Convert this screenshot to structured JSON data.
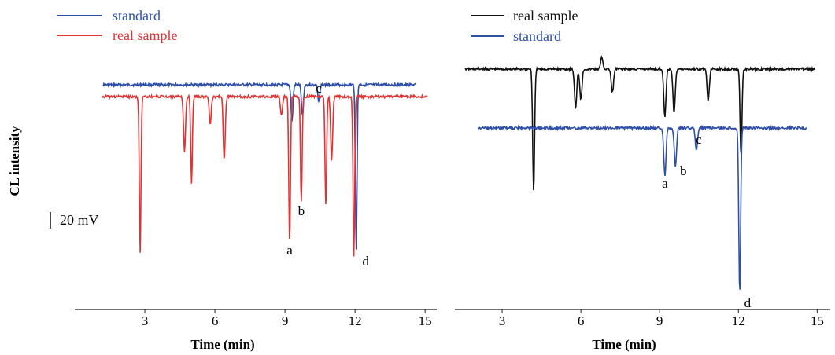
{
  "ylabel": "CL intensity",
  "scale_bar_label": "20 mV",
  "chart_data": [
    {
      "type": "line",
      "panel": "left",
      "xlabel": "Time (min)",
      "ylabel": "CL intensity",
      "xlim": [
        0,
        15.5
      ],
      "xticks": [
        "3",
        "6",
        "9",
        "12",
        "15"
      ],
      "legend_position": "top-left",
      "grid": false,
      "series": [
        {
          "name": "standard",
          "color": "#2e4fa8",
          "x_start": 1.2,
          "x_end": 14.6,
          "baseline": 0,
          "peaks": [
            {
              "t": 9.3,
              "h": 46
            },
            {
              "t": 9.75,
              "h": 40
            },
            {
              "t": 10.45,
              "h": 22
            },
            {
              "t": 12.05,
              "h": 210
            }
          ]
        },
        {
          "name": "real sample",
          "color": "#e03434",
          "x_start": 1.2,
          "x_end": 15.1,
          "baseline": -15,
          "peaks": [
            {
              "t": 2.8,
              "h": 198
            },
            {
              "t": 4.7,
              "h": 70
            },
            {
              "t": 5.0,
              "h": 110
            },
            {
              "t": 5.8,
              "h": 35
            },
            {
              "t": 6.4,
              "h": 80
            },
            {
              "t": 8.85,
              "h": 25
            },
            {
              "t": 9.2,
              "h": 185
            },
            {
              "t": 9.7,
              "h": 135
            },
            {
              "t": 10.75,
              "h": 140
            },
            {
              "t": 11.0,
              "h": 80
            },
            {
              "t": 11.95,
              "h": 205
            }
          ]
        }
      ],
      "annotations": [
        {
          "text": "a",
          "t": 9.2
        },
        {
          "text": "b",
          "t": 9.7
        },
        {
          "text": "c",
          "t": 10.45
        },
        {
          "text": "d",
          "t": 12.05
        }
      ]
    },
    {
      "type": "line",
      "panel": "right",
      "xlabel": "Time (min)",
      "xlim": [
        1.2,
        15.5
      ],
      "xticks": [
        "3",
        "6",
        "9",
        "12",
        "15"
      ],
      "legend_position": "top-left",
      "grid": false,
      "series": [
        {
          "name": "real sample",
          "color": "#111111",
          "x_start": 1.6,
          "x_end": 14.9,
          "baseline": 0,
          "peaks": [
            {
              "t": 4.2,
              "h": 158
            },
            {
              "t": 5.8,
              "h": 50
            },
            {
              "t": 6.0,
              "h": 38
            },
            {
              "t": 6.8,
              "h": -15
            },
            {
              "t": 7.2,
              "h": 30
            },
            {
              "t": 9.2,
              "h": 60
            },
            {
              "t": 9.55,
              "h": 55
            },
            {
              "t": 10.85,
              "h": 40
            },
            {
              "t": 12.1,
              "h": 110
            }
          ]
        },
        {
          "name": "standard",
          "color": "#2e4fa8",
          "x_start": 2.1,
          "x_end": 14.6,
          "baseline": -72,
          "peaks": [
            {
              "t": 9.2,
              "h": 60
            },
            {
              "t": 9.6,
              "h": 48
            },
            {
              "t": 10.4,
              "h": 27
            },
            {
              "t": 12.05,
              "h": 210
            }
          ]
        }
      ],
      "annotations": [
        {
          "text": "a",
          "t": 9.2
        },
        {
          "text": "b",
          "t": 9.6
        },
        {
          "text": "c",
          "t": 10.4
        },
        {
          "text": "d",
          "t": 12.05
        }
      ]
    }
  ]
}
